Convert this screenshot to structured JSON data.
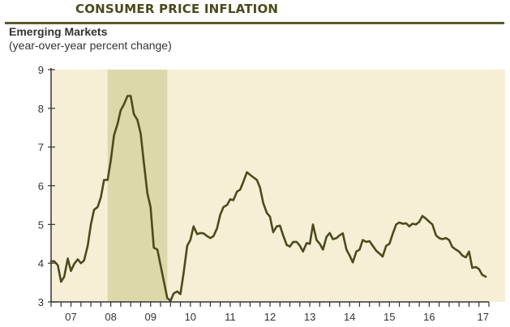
{
  "header": {
    "title": "CONSUMER PRICE INFLATION"
  },
  "chart_data": {
    "type": "line",
    "title": "Emerging Markets",
    "subtitle": "(year-over-year percent change)",
    "xlabel": "",
    "ylabel": "",
    "ylim": [
      3,
      9
    ],
    "xlim": [
      2006.0,
      2017.0
    ],
    "y_ticks": [
      "3",
      "4",
      "5",
      "6",
      "7",
      "8",
      "9"
    ],
    "x_tick_labels": [
      "07",
      "08",
      "09",
      "10",
      "11",
      "12",
      "13",
      "14",
      "15",
      "16",
      "17"
    ],
    "grid": false,
    "colors": {
      "line": "#4d4a1e",
      "background": "#f6efd6",
      "shade": "#ddd8aa",
      "axis": "#333333"
    },
    "shaded_regions": [
      {
        "x_start": 2007.42,
        "x_end": 2008.92
      }
    ],
    "series": [
      {
        "x": [
          2006.0,
          2006.08,
          2006.17,
          2006.25,
          2006.33,
          2006.42,
          2006.5,
          2006.58,
          2006.67,
          2006.75,
          2006.83,
          2006.92,
          2007.0,
          2007.08,
          2007.17,
          2007.25,
          2007.33,
          2007.42,
          2007.5,
          2007.58,
          2007.67,
          2007.75,
          2007.83,
          2007.92,
          2008.0,
          2008.08,
          2008.17,
          2008.25,
          2008.33,
          2008.42,
          2008.5,
          2008.58,
          2008.67,
          2008.75,
          2008.83,
          2008.92,
          2009.0,
          2009.08,
          2009.17,
          2009.25,
          2009.33,
          2009.42,
          2009.5,
          2009.58,
          2009.67,
          2009.75,
          2009.83,
          2009.92,
          2010.0,
          2010.08,
          2010.17,
          2010.25,
          2010.33,
          2010.42,
          2010.5,
          2010.58,
          2010.67,
          2010.75,
          2010.83,
          2010.92,
          2011.0,
          2011.08,
          2011.17,
          2011.25,
          2011.33,
          2011.42,
          2011.5,
          2011.58,
          2011.67,
          2011.75,
          2011.83,
          2011.92,
          2012.0,
          2012.08,
          2012.17,
          2012.25,
          2012.33,
          2012.42,
          2012.5,
          2012.58,
          2012.67,
          2012.75,
          2012.83,
          2012.92,
          2013.0,
          2013.08,
          2013.17,
          2013.25,
          2013.33,
          2013.42,
          2013.5,
          2013.58,
          2013.67,
          2013.75,
          2013.83,
          2013.92,
          2014.0,
          2014.08,
          2014.17,
          2014.25,
          2014.33,
          2014.42,
          2014.5,
          2014.58,
          2014.67,
          2014.75,
          2014.83,
          2014.92,
          2015.0,
          2015.08,
          2015.17,
          2015.25,
          2015.33,
          2015.42,
          2015.5,
          2015.58,
          2015.67,
          2015.75,
          2015.83,
          2015.92,
          2016.0,
          2016.08,
          2016.17,
          2016.25,
          2016.33,
          2016.42,
          2016.5,
          2016.58,
          2016.67,
          2016.75,
          2016.83,
          2016.92
        ],
        "y": [
          4.05,
          4.05,
          3.95,
          3.52,
          3.65,
          4.12,
          3.8,
          3.98,
          4.1,
          4.0,
          4.07,
          4.45,
          5.0,
          5.38,
          5.45,
          5.7,
          6.15,
          6.15,
          6.65,
          7.3,
          7.6,
          7.95,
          8.1,
          8.32,
          8.32,
          7.85,
          7.7,
          7.35,
          6.6,
          5.8,
          5.45,
          4.4,
          4.35,
          3.95,
          3.55,
          3.1,
          3.03,
          3.22,
          3.27,
          3.2,
          3.75,
          4.45,
          4.6,
          4.95,
          4.75,
          4.78,
          4.77,
          4.7,
          4.65,
          4.7,
          4.9,
          5.25,
          5.45,
          5.5,
          5.65,
          5.63,
          5.85,
          5.9,
          6.1,
          6.35,
          6.28,
          6.22,
          6.15,
          5.95,
          5.55,
          5.3,
          5.2,
          4.8,
          4.95,
          4.97,
          4.72,
          4.47,
          4.43,
          4.55,
          4.55,
          4.45,
          4.3,
          4.52,
          4.5,
          5.0,
          4.6,
          4.5,
          4.35,
          4.68,
          4.78,
          4.62,
          4.65,
          4.72,
          4.77,
          4.35,
          4.2,
          4.02,
          4.3,
          4.35,
          4.6,
          4.55,
          4.57,
          4.45,
          4.32,
          4.25,
          4.17,
          4.45,
          4.5,
          4.75,
          5.0,
          5.05,
          5.02,
          5.03,
          4.95,
          5.02,
          5.0,
          5.07,
          5.22,
          5.15,
          5.07,
          5.0,
          4.72,
          4.65,
          4.62,
          4.65,
          4.6,
          4.42,
          4.35,
          4.3,
          4.2,
          4.15,
          4.3,
          3.88,
          3.9,
          3.85,
          3.7,
          3.65
        ]
      }
    ]
  }
}
